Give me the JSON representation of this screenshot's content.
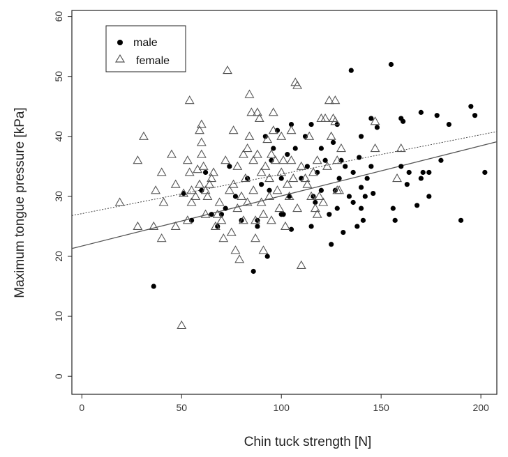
{
  "chart_data": {
    "type": "scatter",
    "title": "",
    "xlabel": "Chin tuck strength [N]",
    "ylabel": "Maximum tongue pressure [kPa]",
    "xlim": [
      -5,
      208
    ],
    "ylim": [
      -3,
      61
    ],
    "xticks": [
      0,
      50,
      100,
      150,
      200
    ],
    "yticks": [
      0,
      10,
      20,
      30,
      40,
      50,
      60
    ],
    "grid": false,
    "legend_position": "top-left",
    "series": [
      {
        "name": "male",
        "marker": "filled-circle",
        "color": "#000000",
        "points": [
          [
            36,
            15
          ],
          [
            51,
            30.5
          ],
          [
            55,
            26
          ],
          [
            60,
            31
          ],
          [
            62,
            34
          ],
          [
            65,
            27
          ],
          [
            68,
            25
          ],
          [
            70,
            27
          ],
          [
            72,
            28
          ],
          [
            74,
            35
          ],
          [
            77,
            30
          ],
          [
            80,
            26
          ],
          [
            83,
            33
          ],
          [
            86,
            17.5
          ],
          [
            88,
            26
          ],
          [
            88,
            25
          ],
          [
            90,
            32
          ],
          [
            92,
            40
          ],
          [
            93,
            20
          ],
          [
            94,
            31
          ],
          [
            95,
            36
          ],
          [
            96,
            38
          ],
          [
            98,
            41
          ],
          [
            100,
            33
          ],
          [
            100,
            27
          ],
          [
            101,
            27
          ],
          [
            103,
            37
          ],
          [
            104,
            30
          ],
          [
            105,
            42
          ],
          [
            105,
            24.5
          ],
          [
            107,
            38
          ],
          [
            110,
            33
          ],
          [
            112,
            40
          ],
          [
            113,
            35
          ],
          [
            115,
            42
          ],
          [
            115,
            25
          ],
          [
            116,
            30
          ],
          [
            117,
            29
          ],
          [
            118,
            34
          ],
          [
            120,
            38
          ],
          [
            120,
            31
          ],
          [
            122,
            36
          ],
          [
            124,
            27
          ],
          [
            125,
            22
          ],
          [
            126,
            39
          ],
          [
            127,
            31
          ],
          [
            128,
            28
          ],
          [
            128,
            42
          ],
          [
            129,
            33
          ],
          [
            130,
            36
          ],
          [
            131,
            24
          ],
          [
            132,
            35
          ],
          [
            134,
            30
          ],
          [
            135,
            51
          ],
          [
            136,
            34
          ],
          [
            136,
            29
          ],
          [
            138,
            25
          ],
          [
            139,
            36.5
          ],
          [
            140,
            40
          ],
          [
            140,
            28
          ],
          [
            140,
            31.5
          ],
          [
            141,
            26
          ],
          [
            142,
            30
          ],
          [
            143,
            33
          ],
          [
            145,
            35
          ],
          [
            145,
            43
          ],
          [
            146,
            30.5
          ],
          [
            148,
            41.5
          ],
          [
            155,
            52
          ],
          [
            156,
            28
          ],
          [
            157,
            26
          ],
          [
            160,
            43
          ],
          [
            160,
            35
          ],
          [
            161,
            42.5
          ],
          [
            163,
            32
          ],
          [
            164,
            34
          ],
          [
            168,
            28.5
          ],
          [
            170,
            44
          ],
          [
            170,
            33
          ],
          [
            171,
            34
          ],
          [
            174,
            30
          ],
          [
            174,
            34
          ],
          [
            178,
            43.5
          ],
          [
            180,
            36
          ],
          [
            184,
            42
          ],
          [
            190,
            26
          ],
          [
            195,
            45
          ],
          [
            197,
            43.5
          ],
          [
            202,
            34
          ]
        ]
      },
      {
        "name": "female",
        "marker": "open-triangle",
        "color": "#555555",
        "points": [
          [
            19,
            29
          ],
          [
            28,
            25
          ],
          [
            28,
            36
          ],
          [
            31,
            40
          ],
          [
            36,
            25
          ],
          [
            37,
            31
          ],
          [
            40,
            23
          ],
          [
            40,
            34
          ],
          [
            41,
            29
          ],
          [
            45,
            37
          ],
          [
            47,
            32
          ],
          [
            47,
            25
          ],
          [
            50,
            8.5
          ],
          [
            51,
            30.5
          ],
          [
            53,
            36
          ],
          [
            53,
            26
          ],
          [
            54,
            46
          ],
          [
            54,
            34
          ],
          [
            55,
            31
          ],
          [
            55,
            29
          ],
          [
            57,
            30
          ],
          [
            58,
            34.5
          ],
          [
            59,
            32
          ],
          [
            59,
            41
          ],
          [
            60,
            42
          ],
          [
            60,
            39
          ],
          [
            60,
            37
          ],
          [
            61,
            35
          ],
          [
            62,
            31
          ],
          [
            62,
            27
          ],
          [
            63,
            30
          ],
          [
            64,
            32
          ],
          [
            65,
            33
          ],
          [
            66,
            34
          ],
          [
            67,
            25
          ],
          [
            68,
            27
          ],
          [
            69,
            29
          ],
          [
            70,
            26
          ],
          [
            71,
            23
          ],
          [
            72,
            36
          ],
          [
            73,
            51
          ],
          [
            74,
            31
          ],
          [
            75,
            24
          ],
          [
            76,
            41
          ],
          [
            76,
            32
          ],
          [
            77,
            21
          ],
          [
            78,
            35
          ],
          [
            78,
            28
          ],
          [
            79,
            19.5
          ],
          [
            80,
            30
          ],
          [
            81,
            37
          ],
          [
            81,
            26
          ],
          [
            82,
            33
          ],
          [
            83,
            29
          ],
          [
            83,
            38
          ],
          [
            84,
            40
          ],
          [
            84,
            47
          ],
          [
            85,
            44
          ],
          [
            86,
            36
          ],
          [
            86,
            31
          ],
          [
            87,
            26
          ],
          [
            87,
            23
          ],
          [
            88,
            44
          ],
          [
            88,
            37
          ],
          [
            89,
            43
          ],
          [
            90,
            34
          ],
          [
            90,
            29
          ],
          [
            91,
            27
          ],
          [
            91,
            21
          ],
          [
            92,
            35
          ],
          [
            93,
            39.5
          ],
          [
            94,
            33
          ],
          [
            94,
            30
          ],
          [
            95,
            37
          ],
          [
            95,
            26
          ],
          [
            96,
            44
          ],
          [
            96,
            41
          ],
          [
            97,
            36
          ],
          [
            98,
            31
          ],
          [
            99,
            28
          ],
          [
            100,
            34
          ],
          [
            100,
            40
          ],
          [
            101,
            36
          ],
          [
            102,
            25
          ],
          [
            103,
            32
          ],
          [
            104,
            30
          ],
          [
            105,
            41
          ],
          [
            105,
            36
          ],
          [
            106,
            33
          ],
          [
            107,
            49
          ],
          [
            108,
            48.5
          ],
          [
            108,
            28
          ],
          [
            110,
            18.5
          ],
          [
            110,
            35
          ],
          [
            112,
            33
          ],
          [
            113,
            32
          ],
          [
            114,
            40
          ],
          [
            115,
            30
          ],
          [
            116,
            34
          ],
          [
            117,
            28
          ],
          [
            118,
            27
          ],
          [
            118,
            36
          ],
          [
            119,
            30
          ],
          [
            120,
            43
          ],
          [
            121,
            29
          ],
          [
            122,
            43
          ],
          [
            123,
            35
          ],
          [
            124,
            46
          ],
          [
            125,
            40
          ],
          [
            126,
            43
          ],
          [
            127,
            42.5
          ],
          [
            127,
            46
          ],
          [
            128,
            36
          ],
          [
            128,
            31
          ],
          [
            129,
            31
          ],
          [
            130,
            38
          ],
          [
            147,
            38
          ],
          [
            147,
            42.5
          ],
          [
            158,
            33
          ],
          [
            160,
            38
          ]
        ]
      }
    ],
    "fit_lines": [
      {
        "name": "male",
        "style": "solid",
        "x": [
          -5,
          208
        ],
        "y": [
          21.3,
          39.1
        ]
      },
      {
        "name": "female",
        "style": "dotted",
        "x": [
          -5,
          208
        ],
        "y": [
          26.8,
          40.8
        ]
      }
    ]
  }
}
